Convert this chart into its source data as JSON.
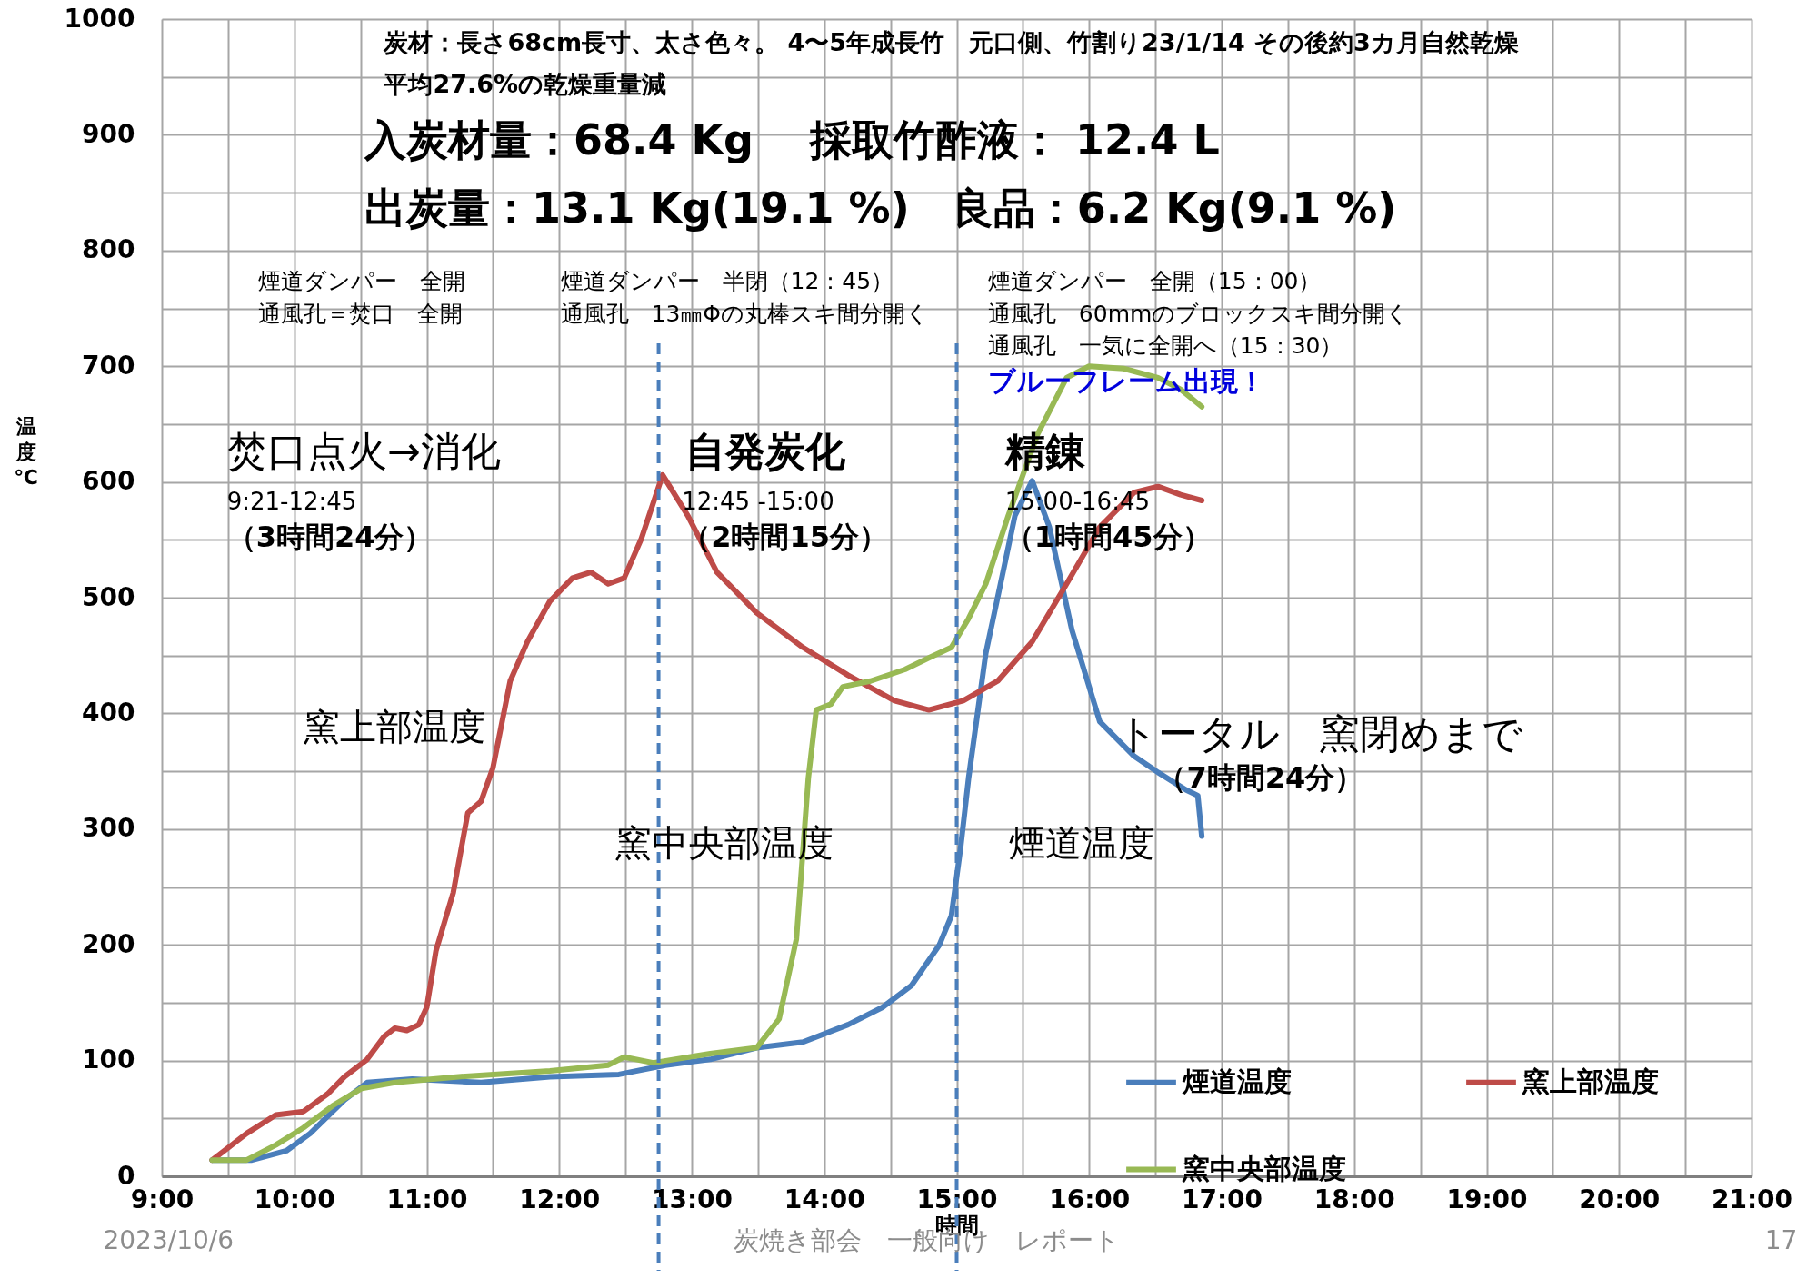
{
  "chart_data": {
    "type": "line",
    "xlabel": "時間",
    "ylabel": "温度 ℃",
    "xlim": [
      9,
      21
    ],
    "ylim": [
      0,
      1000
    ],
    "xticks": [
      {
        "value": 9,
        "label": "9:00"
      },
      {
        "value": 9.5,
        "label": null
      },
      {
        "value": 10,
        "label": "10:00"
      },
      {
        "value": 10.5,
        "label": null
      },
      {
        "value": 11,
        "label": "11:00"
      },
      {
        "value": 11.5,
        "label": null
      },
      {
        "value": 12,
        "label": "12:00"
      },
      {
        "value": 12.5,
        "label": null
      },
      {
        "value": 13,
        "label": "13:00"
      },
      {
        "value": 13.5,
        "label": null
      },
      {
        "value": 14,
        "label": "14:00"
      },
      {
        "value": 14.5,
        "label": null
      },
      {
        "value": 15,
        "label": "15:00"
      },
      {
        "value": 15.5,
        "label": null
      },
      {
        "value": 16,
        "label": "16:00"
      },
      {
        "value": 16.5,
        "label": null
      },
      {
        "value": 17,
        "label": "17:00"
      },
      {
        "value": 17.5,
        "label": null
      },
      {
        "value": 18,
        "label": "18:00"
      },
      {
        "value": 18.5,
        "label": null
      },
      {
        "value": 19,
        "label": "19:00"
      },
      {
        "value": 19.5,
        "label": null
      },
      {
        "value": 20,
        "label": "20:00"
      },
      {
        "value": 20.5,
        "label": null
      },
      {
        "value": 21,
        "label": "21:00"
      }
    ],
    "yticks": [
      0,
      {
        "value": 50,
        "label": null
      },
      100,
      {
        "value": 150,
        "label": null
      },
      200,
      {
        "value": 250,
        "label": null
      },
      300,
      {
        "value": 350,
        "label": null
      },
      400,
      {
        "value": 450,
        "label": null
      },
      500,
      {
        "value": 550,
        "label": null
      },
      600,
      {
        "value": 650,
        "label": null
      },
      700,
      {
        "value": 750,
        "label": null
      },
      800,
      {
        "value": 850,
        "label": null
      },
      900,
      {
        "value": 950,
        "label": null
      },
      1000
    ],
    "grid": true,
    "legend": "bottom right",
    "series": [
      {
        "name": "煙道温度",
        "color": "#4a7ebb",
        "x": [
          9.38,
          9.68,
          9.94,
          10.12,
          10.38,
          10.55,
          10.89,
          11.41,
          11.93,
          12.45,
          12.8,
          13.14,
          13.49,
          13.84,
          14.18,
          14.44,
          14.66,
          14.87,
          14.96,
          15.03,
          15.09,
          15.22,
          15.35,
          15.44,
          15.57,
          15.7,
          15.87,
          16.08,
          16.34,
          16.52,
          16.73,
          16.82,
          16.85
        ],
        "values": [
          14,
          14,
          22,
          37,
          66,
          81,
          84,
          81,
          86,
          88,
          96,
          101,
          111,
          116,
          131,
          146,
          165,
          200,
          225,
          284,
          344,
          452,
          522,
          571,
          601,
          561,
          472,
          393,
          363,
          349,
          334,
          329,
          294
        ]
      },
      {
        "name": "窯上部温度",
        "color": "#be4b48",
        "x": [
          9.38,
          9.64,
          9.86,
          10.07,
          10.25,
          10.38,
          10.55,
          10.68,
          10.76,
          10.85,
          10.94,
          11.0,
          11.07,
          11.2,
          11.31,
          11.41,
          11.5,
          11.63,
          11.76,
          11.93,
          12.1,
          12.24,
          12.37,
          12.49,
          12.62,
          12.78,
          12.97,
          13.19,
          13.49,
          13.84,
          14.18,
          14.53,
          14.79,
          15.05,
          15.31,
          15.57,
          15.83,
          16.08,
          16.34,
          16.52,
          16.69,
          16.85
        ],
        "values": [
          14,
          37,
          53,
          56,
          71,
          86,
          101,
          121,
          128,
          126,
          131,
          146,
          195,
          245,
          314,
          324,
          353,
          428,
          462,
          497,
          517,
          522,
          512,
          517,
          551,
          606,
          571,
          522,
          487,
          457,
          433,
          411,
          403,
          411,
          428,
          462,
          512,
          561,
          591,
          596,
          589,
          584
        ]
      },
      {
        "name": "窯中央部温度",
        "color": "#98b954",
        "x": [
          9.38,
          9.64,
          9.86,
          10.07,
          10.29,
          10.51,
          10.76,
          11.24,
          11.93,
          12.37,
          12.49,
          12.71,
          13.14,
          13.49,
          13.66,
          13.79,
          13.88,
          13.94,
          14.05,
          14.14,
          14.35,
          14.61,
          14.79,
          14.96,
          15.09,
          15.22,
          15.39,
          15.61,
          15.83,
          16.0,
          16.26,
          16.52,
          16.69,
          16.85
        ],
        "values": [
          14,
          14,
          27,
          42,
          61,
          76,
          81,
          86,
          91,
          96,
          103,
          98,
          106,
          111,
          136,
          205,
          344,
          403,
          408,
          423,
          428,
          438,
          448,
          457,
          482,
          512,
          571,
          641,
          690,
          700,
          698,
          690,
          680,
          665
        ]
      }
    ],
    "ref_lines": [
      {
        "axis": "x",
        "value": 12.75,
        "color": "#4a7ebb",
        "line_style": "dashed"
      },
      {
        "axis": "x",
        "value": 15,
        "color": "#4a7ebb",
        "line_style": "dashed"
      }
    ],
    "annotations": [
      "炭材：長さ68cm長寸、太さ色々。 4〜5年成長竹　元口側、竹割り23/1/14 その後約3カ月自然乾燥",
      "平均27.6%の乾燥重量減",
      "入炭材量：68.4 Kg　 採取竹酢液： 12.4 L",
      "出炭量：13.1 Kg(19.1 %)　良品：6.2 Kg(9.1 %)",
      "煙道ダンパー　全開",
      "通風孔＝焚口　全開",
      "煙道ダンパー　半閉（12：45）",
      "通風孔　13㎜Φの丸棒スキ間分開く",
      "煙道ダンパー　全開（15：00）",
      "通風孔　60mmのブロックスキ間分開く",
      "通風孔　一気に全開へ（15：30）",
      "ブルーフレーム出現！",
      "焚口点火→消化",
      "9:21-12:45",
      "（3時間24分）",
      "自発炭化",
      "12:45 -15:00",
      "（2時間15分）",
      "精錬",
      "15:00-16:45",
      "（1時間45分）",
      "窯上部温度",
      "窯中央部温度",
      "煙道温度",
      "トータル　窯閉めまで",
      "（7時間24分）",
      "2023/10/6",
      "炭焼き部会　一般向け　レポート",
      "17"
    ]
  }
}
